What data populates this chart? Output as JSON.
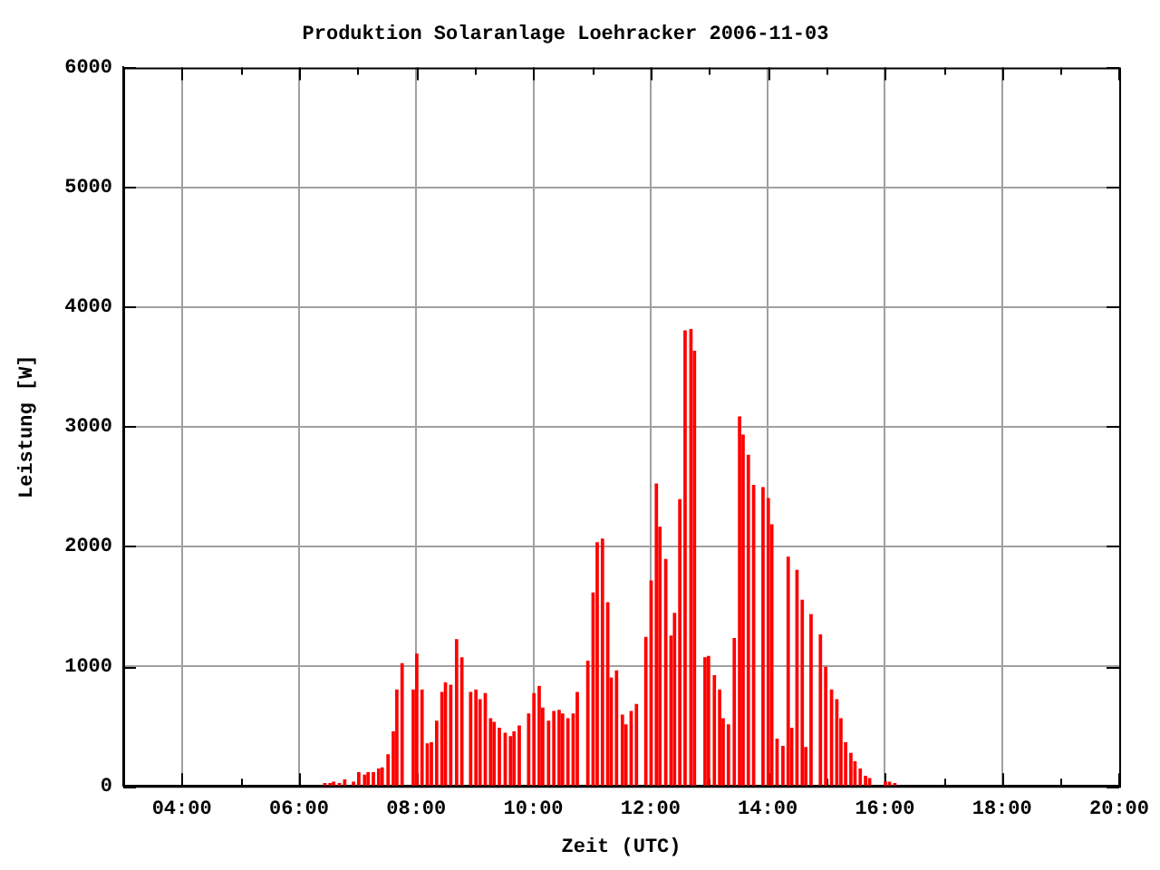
{
  "chart_data": {
    "type": "bar",
    "title": "Produktion Solaranlage Loehracker 2006-11-03",
    "xlabel": "Zeit (UTC)",
    "ylabel": "Leistung [W]",
    "x": [
      6.44,
      6.53,
      6.59,
      6.69,
      6.78,
      6.93,
      7.02,
      7.12,
      7.18,
      7.27,
      7.36,
      7.42,
      7.52,
      7.61,
      7.67,
      7.76,
      7.95,
      8.01,
      8.1,
      8.19,
      8.26,
      8.35,
      8.44,
      8.5,
      8.59,
      8.69,
      8.78,
      8.93,
      9.02,
      9.09,
      9.18,
      9.27,
      9.33,
      9.42,
      9.52,
      9.61,
      9.67,
      9.76,
      9.92,
      10.01,
      10.1,
      10.16,
      10.26,
      10.35,
      10.44,
      10.5,
      10.59,
      10.68,
      10.75,
      10.93,
      11.02,
      11.09,
      11.18,
      11.27,
      11.33,
      11.42,
      11.52,
      11.58,
      11.67,
      11.76,
      11.92,
      12.01,
      12.1,
      12.16,
      12.26,
      12.35,
      12.41,
      12.5,
      12.59,
      12.69,
      12.75,
      12.93,
      12.99,
      13.09,
      13.18,
      13.24,
      13.33,
      13.43,
      13.52,
      13.58,
      13.67,
      13.76,
      13.92,
      14.01,
      14.07,
      14.16,
      14.26,
      14.35,
      14.41,
      14.5,
      14.59,
      14.65,
      14.74,
      14.9,
      14.99,
      15.09,
      15.18,
      15.25,
      15.33,
      15.42,
      15.49,
      15.58,
      15.67,
      15.74,
      16.01,
      16.08,
      16.17
    ],
    "values": [
      20,
      20,
      30,
      20,
      50,
      30,
      110,
      90,
      110,
      110,
      140,
      150,
      260,
      450,
      800,
      1020,
      800,
      1100,
      800,
      350,
      360,
      540,
      780,
      860,
      840,
      1220,
      1070,
      780,
      800,
      720,
      770,
      560,
      530,
      480,
      440,
      410,
      450,
      500,
      600,
      770,
      830,
      650,
      540,
      620,
      630,
      600,
      560,
      600,
      780,
      1040,
      1610,
      2030,
      2060,
      1530,
      900,
      960,
      590,
      510,
      620,
      680,
      1240,
      1710,
      2520,
      2160,
      1890,
      1250,
      1440,
      2390,
      3800,
      3810,
      3630,
      1070,
      1080,
      920,
      800,
      560,
      510,
      1230,
      3080,
      2930,
      2760,
      2510,
      2490,
      2400,
      2180,
      390,
      330,
      1910,
      480,
      1800,
      1550,
      320,
      1430,
      1260,
      990,
      800,
      720,
      560,
      360,
      270,
      200,
      140,
      80,
      60,
      30,
      30,
      20
    ],
    "color": "#ff0000",
    "xlim": [
      3,
      20
    ],
    "xticks": [
      {
        "value": 3,
        "label": null
      },
      {
        "value": 4,
        "label": "04:00"
      },
      {
        "value": 5,
        "label": null
      },
      {
        "value": 6,
        "label": "06:00"
      },
      {
        "value": 7,
        "label": null
      },
      {
        "value": 8,
        "label": "08:00"
      },
      {
        "value": 9,
        "label": null
      },
      {
        "value": 10,
        "label": "10:00"
      },
      {
        "value": 11,
        "label": null
      },
      {
        "value": 12,
        "label": "12:00"
      },
      {
        "value": 13,
        "label": null
      },
      {
        "value": 14,
        "label": "14:00"
      },
      {
        "value": 15,
        "label": null
      },
      {
        "value": 16,
        "label": "16:00"
      },
      {
        "value": 17,
        "label": null
      },
      {
        "value": 18,
        "label": "18:00"
      },
      {
        "value": 19,
        "label": null
      },
      {
        "value": 20,
        "label": "20:00"
      }
    ],
    "ylim": [
      0,
      6000
    ],
    "yticks": [
      0,
      1000,
      2000,
      3000,
      4000,
      5000,
      6000
    ],
    "grid": true
  }
}
